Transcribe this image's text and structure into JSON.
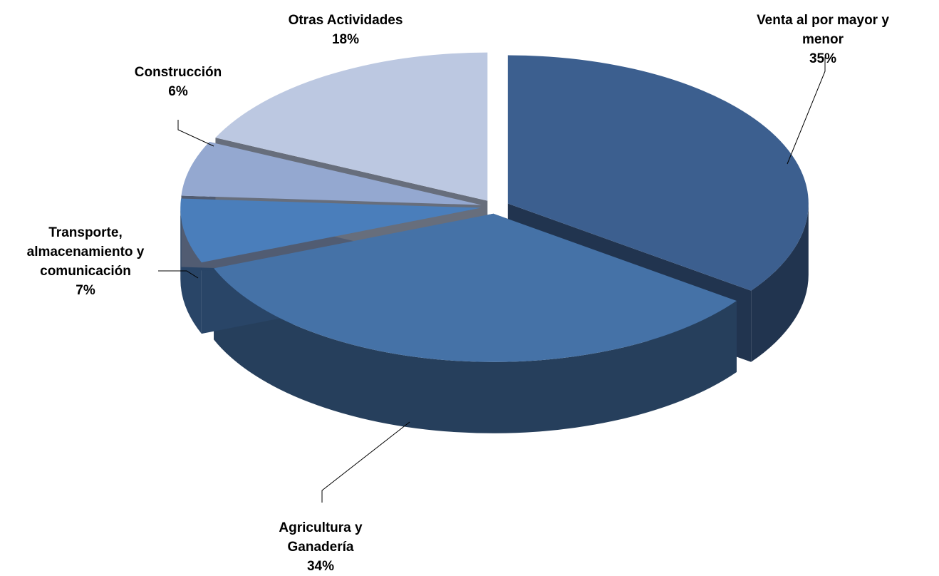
{
  "chart_data": {
    "type": "pie3d",
    "categories": [
      "Venta al por mayor y menor",
      "Agricultura y Ganadería",
      "Transporte, almacenamiento y comunicación",
      "Construcción",
      "Otras Actividades"
    ],
    "values": [
      35,
      34,
      7,
      6,
      18
    ],
    "value_labels": [
      "35%",
      "34%",
      "7%",
      "6%",
      "18%"
    ],
    "colors": [
      "#3c5f8f",
      "#4572a7",
      "#4a7ebb",
      "#94a8d0",
      "#bcc8e1"
    ]
  }
}
